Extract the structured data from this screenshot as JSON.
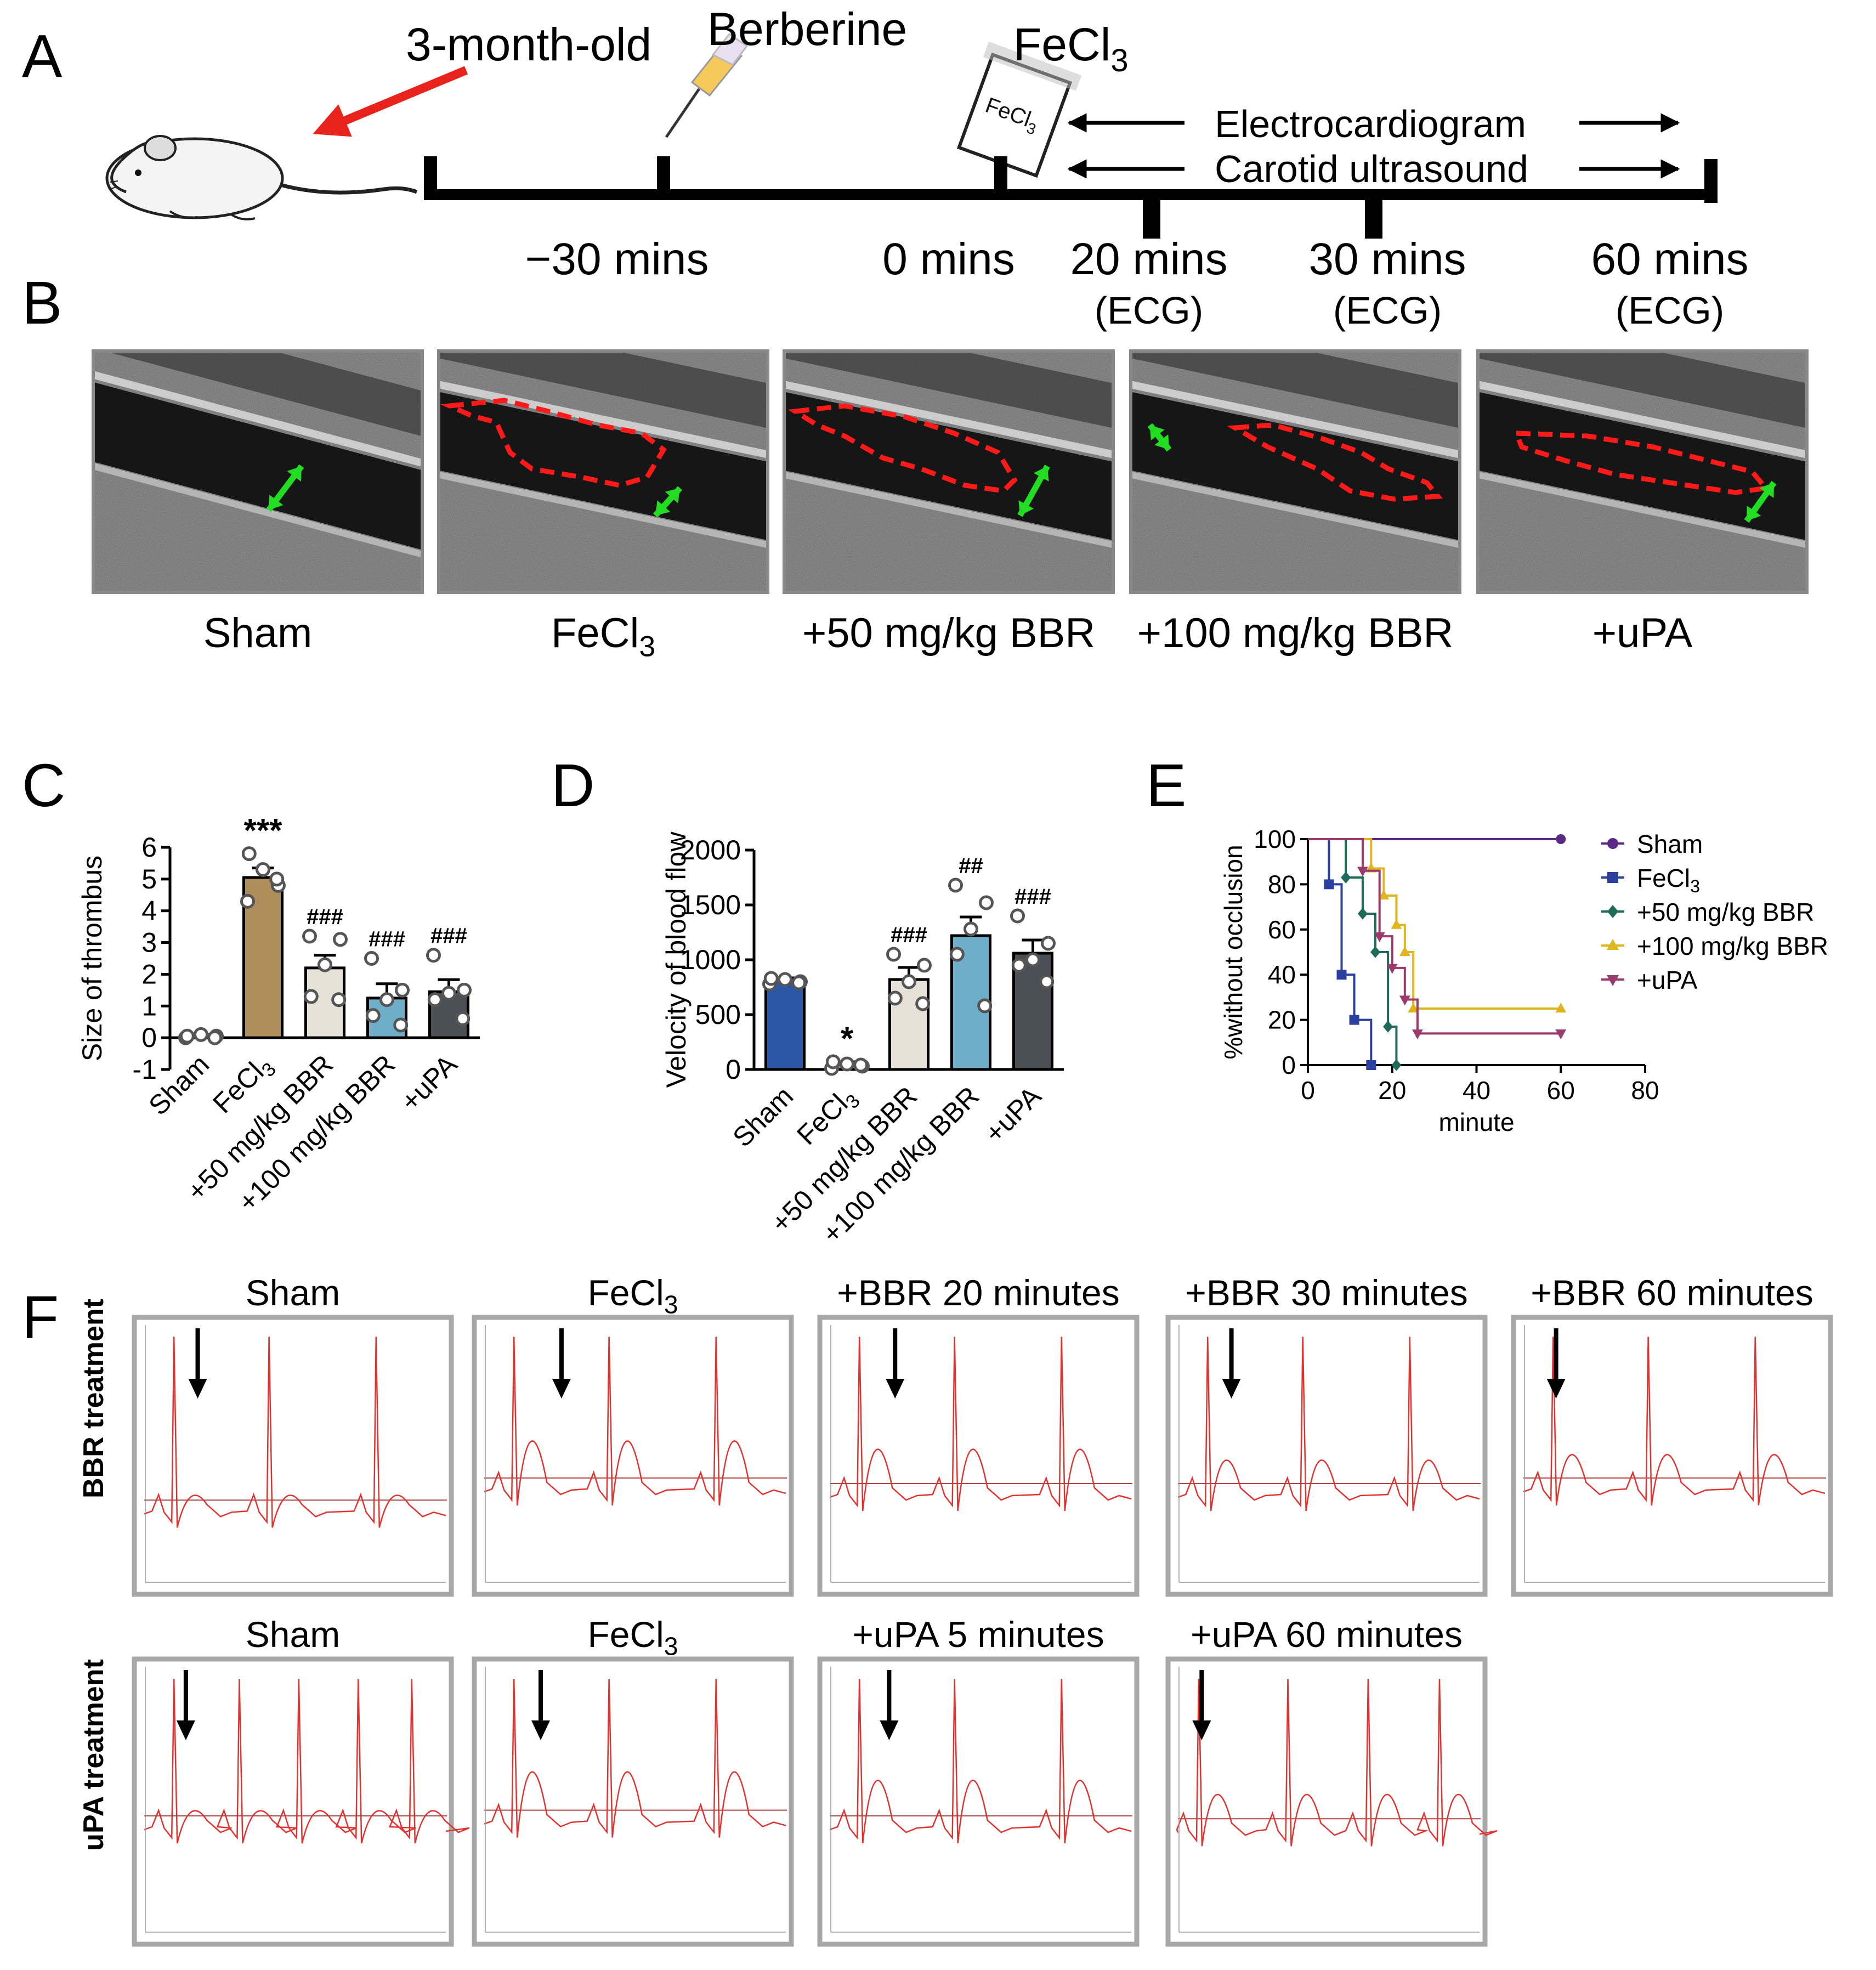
{
  "panel_letters": {
    "a": "A",
    "b": "B",
    "c": "C",
    "d": "D",
    "e": "E",
    "f": "F"
  },
  "timeline": {
    "age_label": "3-month-old",
    "drug_label": "Berberine",
    "fecl3_label": "FeCl",
    "fecl3_sub": "3",
    "vial_label": "FeCl",
    "vial_sub": "3",
    "ecg_label": "Electrocardiogram",
    "ultrasound_label": "Carotid ultrasound",
    "ticks": [
      {
        "time": "−30 mins",
        "note": ""
      },
      {
        "time": "0 mins",
        "note": ""
      },
      {
        "time": "20 mins",
        "note": "(ECG)"
      },
      {
        "time": "30 mins",
        "note": "(ECG)"
      },
      {
        "time": "60 mins",
        "note": "(ECG)"
      }
    ]
  },
  "ultrasound": {
    "labels": [
      {
        "main": "Sham",
        "sub": "",
        "tail": ""
      },
      {
        "main": "FeCl",
        "sub": "3",
        "tail": ""
      },
      {
        "main": "+50 mg/kg BBR",
        "sub": "",
        "tail": ""
      },
      {
        "main": "+100 mg/kg BBR",
        "sub": "",
        "tail": ""
      },
      {
        "main": "+uPA",
        "sub": "",
        "tail": ""
      }
    ],
    "thrombus_color": "#ff1a1a",
    "arrow_color": "#22dd22"
  },
  "colors": {
    "sham": "#2b57a6",
    "fecl3": "#b08e5c",
    "bbr50": "#e5e1d6",
    "bbr100": "#6faec8",
    "upa": "#4a4f55",
    "e_sham": "#5b2a86",
    "e_fecl3": "#2a3fa0",
    "e_bbr50": "#1f6b5a",
    "e_bbr100": "#e0b51f",
    "e_upa": "#9b3a6b",
    "ecg": "#e0332f",
    "ecg_baseline": "#b04545"
  },
  "chart_data": [
    {
      "panel": "C",
      "type": "bar",
      "ylabel": "Size of thrombus",
      "ylim": [
        -1,
        6
      ],
      "yticks": [
        "-1",
        "0",
        "1",
        "2",
        "3",
        "4",
        "5",
        "6"
      ],
      "categories": [
        "Sham",
        "FeCl3",
        "+50 mg/kg BBR",
        "+100 mg/kg BBR",
        "+uPA"
      ],
      "category_labels": [
        {
          "main": "Sham",
          "sub": ""
        },
        {
          "main": "FeCl",
          "sub": "3"
        },
        {
          "main": "+50 mg/kg BBR",
          "sub": ""
        },
        {
          "main": "+100 mg/kg BBR",
          "sub": ""
        },
        {
          "main": "+uPA",
          "sub": ""
        }
      ],
      "values": [
        0.05,
        5.05,
        2.2,
        1.25,
        1.45
      ],
      "errors": [
        0.05,
        0.3,
        0.4,
        0.45,
        0.38
      ],
      "points": [
        [
          0.0,
          0.05,
          0.1,
          0.05,
          0.0
        ],
        [
          4.3,
          4.8,
          5.3,
          5.8,
          5.0
        ],
        [
          3.2,
          3.1,
          2.3,
          1.3,
          1.2
        ],
        [
          2.5,
          1.5,
          1.2,
          0.7,
          0.4
        ],
        [
          2.6,
          1.5,
          1.4,
          1.2,
          0.6
        ]
      ],
      "annotations": [
        "",
        "***",
        "###",
        "###",
        "###"
      ]
    },
    {
      "panel": "D",
      "type": "bar",
      "ylabel": "Velocity of blood flow",
      "ylim": [
        0,
        2000
      ],
      "yticks": [
        "0",
        "500",
        "1000",
        "1500",
        "2000"
      ],
      "categories": [
        "Sham",
        "FeCl3",
        "+50 mg/kg BBR",
        "+100 mg/kg BBR",
        "+uPA"
      ],
      "category_labels": [
        {
          "main": "Sham",
          "sub": ""
        },
        {
          "main": "FeCl",
          "sub": "3"
        },
        {
          "main": "+50 mg/kg BBR",
          "sub": ""
        },
        {
          "main": "+100 mg/kg BBR",
          "sub": ""
        },
        {
          "main": "+uPA",
          "sub": ""
        }
      ],
      "values": [
        810,
        45,
        820,
        1220,
        1060
      ],
      "errors": [
        25,
        25,
        110,
        170,
        120
      ],
      "points": [
        [
          780,
          800,
          820,
          830,
          790
        ],
        [
          10,
          30,
          50,
          70,
          40
        ],
        [
          1050,
          950,
          800,
          650,
          600
        ],
        [
          1680,
          1520,
          1280,
          1050,
          580
        ],
        [
          1400,
          1150,
          1000,
          950,
          800
        ]
      ],
      "annotations": [
        "",
        "*",
        "###",
        "##",
        "###"
      ]
    },
    {
      "panel": "E",
      "type": "line",
      "xlabel": "minute",
      "ylabel": "%without occlusion",
      "xlim": [
        0,
        80
      ],
      "ylim": [
        0,
        100
      ],
      "xticks": [
        "0",
        "20",
        "40",
        "60",
        "80"
      ],
      "yticks": [
        "0",
        "20",
        "40",
        "60",
        "80",
        "100"
      ],
      "legend_position": "right",
      "series": [
        {
          "name": "Sham",
          "sub": "",
          "marker": "circle",
          "x": [
            0,
            60
          ],
          "y": [
            100,
            100
          ]
        },
        {
          "name": "FeCl",
          "sub": "3",
          "marker": "square",
          "x": [
            0,
            5,
            8,
            11,
            15
          ],
          "y": [
            100,
            80,
            40,
            20,
            0
          ]
        },
        {
          "name": "+50 mg/kg BBR",
          "sub": "",
          "marker": "diamond",
          "x": [
            0,
            9,
            13,
            16,
            19,
            21
          ],
          "y": [
            100,
            83,
            67,
            50,
            17,
            0
          ]
        },
        {
          "name": "+100 mg/kg BBR",
          "sub": "",
          "marker": "triangle",
          "x": [
            0,
            15,
            18,
            21,
            23,
            25,
            60
          ],
          "y": [
            100,
            87,
            75,
            62,
            50,
            25,
            25
          ]
        },
        {
          "name": "+uPA",
          "sub": "",
          "marker": "triangle-down",
          "x": [
            0,
            13,
            17,
            20,
            23,
            26,
            60
          ],
          "y": [
            100,
            86,
            57,
            43,
            29,
            14,
            14
          ]
        }
      ]
    }
  ],
  "ecg": {
    "row_labels": {
      "bbr": "BBR treatment",
      "upa": "uPA treatment"
    },
    "bbr_row": [
      {
        "main": "Sham",
        "sub": "",
        "tail": ""
      },
      {
        "main": "FeCl",
        "sub": "3",
        "tail": ""
      },
      {
        "main": "+BBR 20 minutes",
        "sub": "",
        "tail": ""
      },
      {
        "main": "+BBR 30 minutes",
        "sub": "",
        "tail": ""
      },
      {
        "main": "+BBR 60 minutes",
        "sub": "",
        "tail": ""
      }
    ],
    "upa_row": [
      {
        "main": "Sham",
        "sub": "",
        "tail": ""
      },
      {
        "main": "FeCl",
        "sub": "3",
        "tail": ""
      },
      {
        "main": "+uPA 5 minutes",
        "sub": "",
        "tail": ""
      },
      {
        "main": "+uPA 60 minutes",
        "sub": "",
        "tail": ""
      }
    ]
  }
}
